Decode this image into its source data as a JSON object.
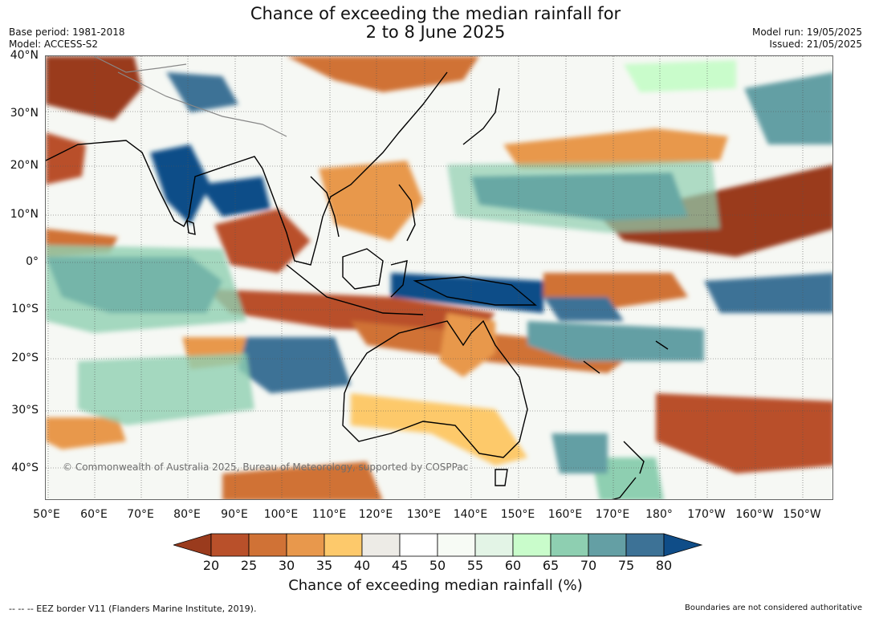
{
  "title": {
    "line1": "Chance of exceeding the median rainfall for",
    "line2": "2 to 8 June 2025"
  },
  "meta": {
    "base_period": "Base period: 1981-2018",
    "model": "Model: ACCESS-S2",
    "model_run": "Model run: 19/05/2025",
    "issued": "Issued: 21/05/2025"
  },
  "map": {
    "lat_ticks": [
      "40°N",
      "30°N",
      "20°N",
      "10°N",
      "0°",
      "10°S",
      "20°S",
      "30°S",
      "40°S"
    ],
    "lon_ticks": [
      "50°E",
      "60°E",
      "70°E",
      "80°E",
      "90°E",
      "100°E",
      "110°E",
      "120°E",
      "130°E",
      "140°E",
      "150°E",
      "160°E",
      "170°E",
      "180°",
      "170°W",
      "160°W",
      "150°W"
    ],
    "copyright": "© Commonwealth of Australia 2025, Bureau of Meteorology, supported by COSPPac"
  },
  "colorbar": {
    "label": "Chance of exceeding median rainfall (%)",
    "ticks": [
      "20",
      "25",
      "30",
      "35",
      "40",
      "45",
      "50",
      "55",
      "60",
      "65",
      "70",
      "75",
      "80"
    ],
    "colors": [
      "#9a3b1d",
      "#b9502a",
      "#d07236",
      "#e8984c",
      "#fdc96b",
      "#edebe6",
      "#ffffff",
      "#f7fbf5",
      "#e3f4e6",
      "#c9fccb",
      "#8ecfb1",
      "#649fa4",
      "#3d7296",
      "#0f4d88"
    ]
  },
  "footer": {
    "eez_note": "--  --  -- EEZ border V11 (Flanders Marine Institute, 2019).",
    "disclaimer": "Boundaries are not considered authoritative"
  }
}
